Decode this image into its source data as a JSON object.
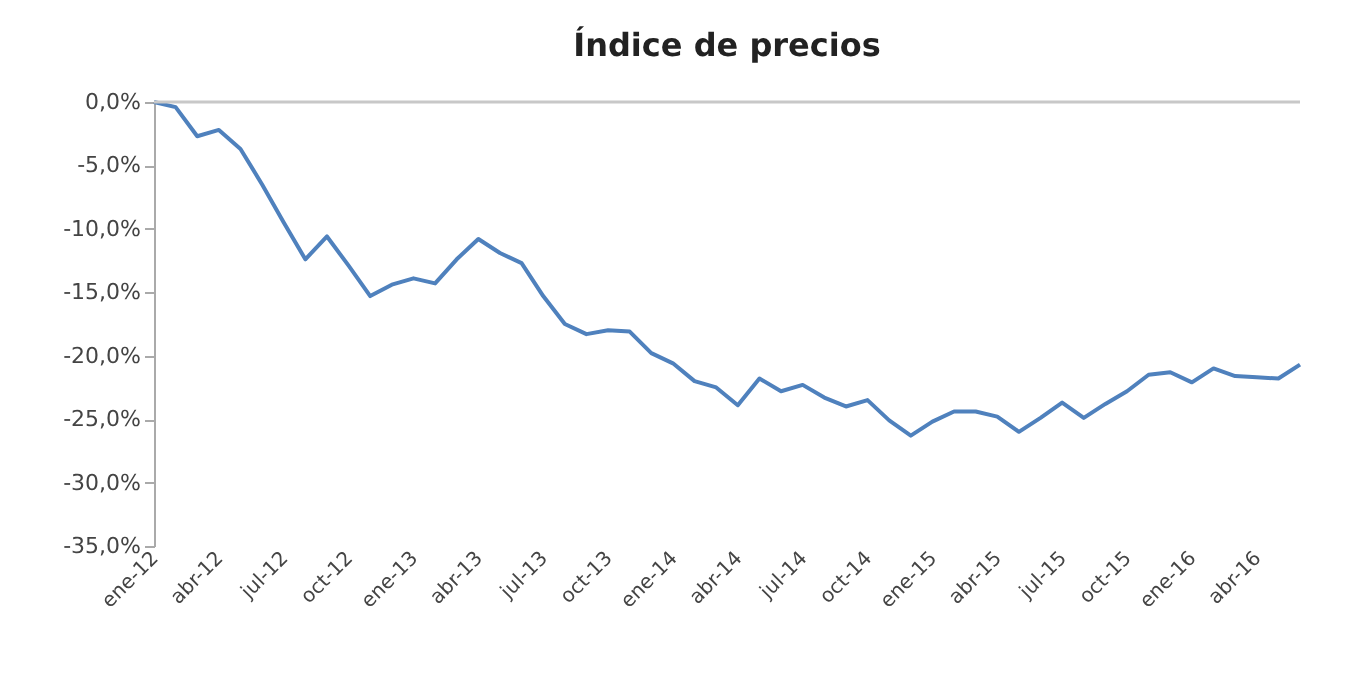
{
  "chart_data": {
    "type": "line",
    "title": "Índice de precios",
    "x": [
      "2012-01",
      "2012-02",
      "2012-03",
      "2012-04",
      "2012-05",
      "2012-06",
      "2012-07",
      "2012-08",
      "2012-09",
      "2012-10",
      "2012-11",
      "2012-12",
      "2013-01",
      "2013-02",
      "2013-03",
      "2013-04",
      "2013-05",
      "2013-06",
      "2013-07",
      "2013-08",
      "2013-09",
      "2013-10",
      "2013-11",
      "2013-12",
      "2014-01",
      "2014-02",
      "2014-03",
      "2014-04",
      "2014-05",
      "2014-06",
      "2014-07",
      "2014-08",
      "2014-09",
      "2014-10",
      "2014-11",
      "2014-12",
      "2015-01",
      "2015-02",
      "2015-03",
      "2015-04",
      "2015-05",
      "2015-06",
      "2015-07",
      "2015-08",
      "2015-09",
      "2015-10",
      "2015-11",
      "2015-12",
      "2016-01",
      "2016-02",
      "2016-03",
      "2016-04",
      "2016-05",
      "2016-06"
    ],
    "series": [
      {
        "color": "#4f81bd",
        "values": [
          0,
          -0.4,
          -2.7,
          -2.2,
          -3.7,
          -6.5,
          -9.5,
          -12.4,
          -10.6,
          -12.9,
          -15.3,
          -14.4,
          -13.9,
          -14.3,
          -12.4,
          -10.8,
          -11.9,
          -12.7,
          -15.3,
          -17.5,
          -18.3,
          -18.0,
          -18.1,
          -19.8,
          -20.6,
          -22.0,
          -22.5,
          -23.9,
          -21.8,
          -22.8,
          -22.3,
          -23.3,
          -24.0,
          -23.5,
          -25.1,
          -26.3,
          -25.2,
          -24.4,
          -24.4,
          -24.8,
          -26.0,
          -24.9,
          -23.7,
          -24.9,
          -23.8,
          -22.8,
          -21.5,
          -21.3,
          -22.1,
          -21.0,
          -21.6,
          -21.7,
          -21.8,
          -20.7
        ]
      }
    ],
    "xlim": [
      "2012-01",
      "2016-06"
    ],
    "xticks": [
      {
        "value": "2012-01",
        "label": "ene-12"
      },
      {
        "value": "2012-04",
        "label": "abr-12"
      },
      {
        "value": "2012-07",
        "label": "jul-12"
      },
      {
        "value": "2012-10",
        "label": "oct-12"
      },
      {
        "value": "2013-01",
        "label": "ene-13"
      },
      {
        "value": "2013-04",
        "label": "abr-13"
      },
      {
        "value": "2013-07",
        "label": "jul-13"
      },
      {
        "value": "2013-10",
        "label": "oct-13"
      },
      {
        "value": "2014-01",
        "label": "ene-14"
      },
      {
        "value": "2014-04",
        "label": "abr-14"
      },
      {
        "value": "2014-07",
        "label": "jul-14"
      },
      {
        "value": "2014-10",
        "label": "oct-14"
      },
      {
        "value": "2015-01",
        "label": "ene-15"
      },
      {
        "value": "2015-04",
        "label": "abr-15"
      },
      {
        "value": "2015-07",
        "label": "jul-15"
      },
      {
        "value": "2015-10",
        "label": "oct-15"
      },
      {
        "value": "2016-01",
        "label": "ene-16"
      },
      {
        "value": "2016-04",
        "label": "abr-16"
      }
    ],
    "ylim": [
      -35,
      0
    ],
    "yticks": [
      {
        "value": 0,
        "label": "0,0%"
      },
      {
        "value": -5,
        "label": "-5,0%"
      },
      {
        "value": -10,
        "label": "-10,0%"
      },
      {
        "value": -15,
        "label": "-15,0%"
      },
      {
        "value": -20,
        "label": "-20,0%"
      },
      {
        "value": -25,
        "label": "-25,0%"
      },
      {
        "value": -30,
        "label": "-30,0%"
      },
      {
        "value": -35,
        "label": "-35,0%"
      }
    ],
    "ref_lines": [
      {
        "axis": "y",
        "value": 0,
        "color": "#c8c8c8"
      }
    ],
    "grid": false,
    "marker": "none",
    "line_style": "solid"
  }
}
